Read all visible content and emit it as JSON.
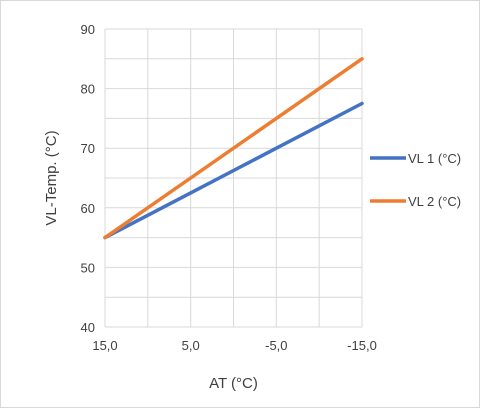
{
  "chart_data": {
    "type": "line",
    "x": [
      15,
      5,
      -5,
      -15
    ],
    "x_tick_labels": [
      "15,0",
      "5,0",
      "-5,0",
      "-15,0"
    ],
    "xlim": [
      15,
      -15
    ],
    "x_reversed": true,
    "y_ticks": [
      40,
      50,
      60,
      70,
      80,
      90
    ],
    "ylim": [
      40,
      90
    ],
    "xlabel": "AT (°C)",
    "ylabel": "VL-Temp. (°C)",
    "grid": true,
    "legend_position": "right",
    "series": [
      {
        "name": "VL  1 (°C)",
        "color": "#4472c4",
        "values": [
          55,
          62.5,
          70,
          77.5
        ]
      },
      {
        "name": "VL  2 (°C)",
        "color": "#ed7d31",
        "values": [
          55,
          65,
          75,
          85
        ]
      }
    ]
  }
}
